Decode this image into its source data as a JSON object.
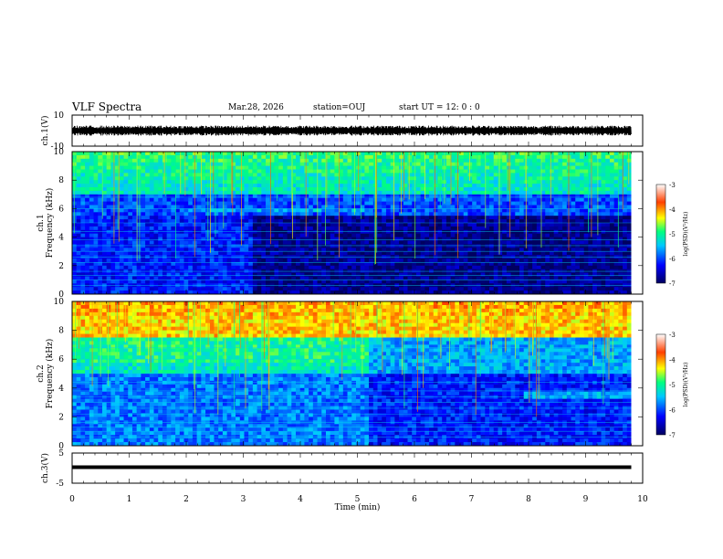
{
  "header": {
    "title": "VLF Spectra",
    "date": "Mar.28, 2026",
    "station": "station=OUJ",
    "start": "start  UT  =   12: 0  : 0"
  },
  "chart_data": [
    {
      "type": "line",
      "name": "ch1-waveform",
      "ylabel": "ch.1(V)",
      "ylim": [
        -10,
        10
      ],
      "yticks": [
        "10",
        "-10"
      ],
      "xlim": [
        0,
        10
      ],
      "description_series": [
        {
          "name": "ch.1 amplitude",
          "baseline": 0,
          "amplitude": 2
        }
      ]
    },
    {
      "type": "heatmap",
      "name": "ch1-spectrogram",
      "ylabel": "ch.1\nFrequency  (kHz)",
      "ylabel_lines": [
        "ch.1",
        "Frequency  (kHz)"
      ],
      "ylim": [
        0,
        10
      ],
      "yticks": [
        "0",
        "2",
        "4",
        "6",
        "8",
        "10"
      ],
      "xlim": [
        0,
        10
      ],
      "colorbar": {
        "label": "log(PSD)(V²/Hz)",
        "ticks": [
          "-3",
          "-4",
          "-5",
          "-6",
          "-7"
        ],
        "range": [
          -7,
          -3
        ]
      },
      "bands": [
        {
          "from_min": 0,
          "to_min": 9.8,
          "f_low": 7,
          "f_high": 10,
          "level": -5.2
        },
        {
          "from_min": 2.0,
          "to_min": 5.2,
          "f_low": 5.7,
          "f_high": 6.1,
          "level": -5.6
        },
        {
          "from_min": 0,
          "to_min": 3.2,
          "f_low": 0,
          "f_high": 5.5,
          "level": -6.2
        },
        {
          "from_min": 3.2,
          "to_min": 9.8,
          "f_low": 2.5,
          "f_high": 5.5,
          "level": -6.9
        }
      ]
    },
    {
      "type": "heatmap",
      "name": "ch2-spectrogram",
      "ylabel_lines": [
        "ch.2",
        "Frequency  (kHz)"
      ],
      "ylim": [
        0,
        10
      ],
      "yticks": [
        "0",
        "2",
        "4",
        "6",
        "8",
        "10"
      ],
      "xlim": [
        0,
        10
      ],
      "colorbar": {
        "label": "log(PSD)(V²/Hz)",
        "ticks": [
          "-3",
          "-4",
          "-5",
          "-6",
          "-7"
        ],
        "range": [
          -7,
          -3
        ]
      },
      "bands": [
        {
          "from_min": 0,
          "to_min": 9.8,
          "f_low": 7.5,
          "f_high": 10,
          "level": -4.2
        },
        {
          "from_min": 0,
          "to_min": 5.2,
          "f_low": 5.7,
          "f_high": 7.5,
          "level": -5.0
        },
        {
          "from_min": 7.9,
          "to_min": 9.8,
          "f_low": 3.2,
          "f_high": 3.8,
          "level": -5.6
        }
      ]
    },
    {
      "type": "line",
      "name": "ch3-waveform",
      "ylabel": "ch.3(V)",
      "ylim": [
        -5,
        5
      ],
      "yticks": [
        "5",
        "-5"
      ],
      "xlim": [
        0,
        10
      ],
      "description_series": [
        {
          "name": "ch.3 amplitude",
          "baseline": 0,
          "amplitude": 0.2
        }
      ]
    }
  ],
  "xaxis": {
    "label": "Time  (min)",
    "ticks": [
      "0",
      "1",
      "2",
      "3",
      "4",
      "5",
      "6",
      "7",
      "8",
      "9",
      "10"
    ],
    "data_end_min": 9.8
  }
}
